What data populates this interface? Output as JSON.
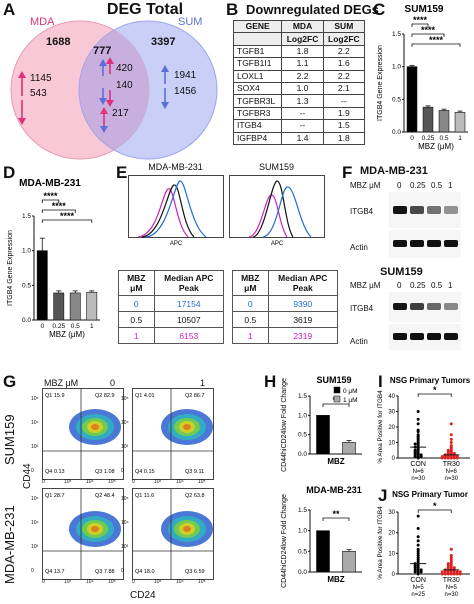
{
  "panels": {
    "a": "A",
    "b": "B",
    "c": "C",
    "d": "D",
    "e": "E",
    "f": "F",
    "g": "G",
    "h": "H",
    "i": "I",
    "j": "J"
  },
  "venn": {
    "title": "DEG Total",
    "left_label": "MDA",
    "right_label": "SUM",
    "left_total": "1688",
    "overlap_total": "777",
    "right_total": "3397",
    "left_up": "1145",
    "left_down": "543",
    "mid_up": "420",
    "mid_down": "140",
    "mid_mixed": "217",
    "right_up": "1941",
    "right_down": "1456",
    "colors": {
      "left": "#f0a8c0",
      "right": "#a8b4f0",
      "up": "#e0307a",
      "down": "#5b6fd8"
    }
  },
  "table_b": {
    "title": "Downregulated DEGs",
    "headers": [
      "GENE",
      "MDA",
      "SUM"
    ],
    "subheaders": [
      "",
      "Log2FC",
      "Log2FC"
    ],
    "rows": [
      [
        "TGFB1",
        "1.8",
        "2.2"
      ],
      [
        "TGFB1I1",
        "1.1",
        "1.6"
      ],
      [
        "LOXL1",
        "2.2",
        "2.2"
      ],
      [
        "SOX4",
        "1.0",
        "2.1"
      ],
      [
        "TGFBR3L",
        "1.3",
        "--"
      ],
      [
        "TGFBR3",
        "--",
        "1.9"
      ],
      [
        "ITGB4",
        "--",
        "1.5"
      ],
      [
        "IGFBP4",
        "1.4",
        "1.8"
      ]
    ]
  },
  "chart_data": [
    {
      "panel": "C",
      "type": "bar",
      "title": "SUM159",
      "categories": [
        "0",
        "0.25",
        "0.5",
        "1"
      ],
      "values": [
        1.0,
        0.38,
        0.33,
        0.3
      ],
      "errors": [
        0.02,
        0.02,
        0.02,
        0.02
      ],
      "xlabel": "MBZ (μM)",
      "ylabel": "ITGB4 Gene Expression",
      "ylim": [
        0,
        1.5
      ],
      "yticks": [
        "0.0",
        "0.5",
        "1.0",
        "1.5"
      ],
      "significance": [
        "****",
        "****",
        "****"
      ],
      "bar_colors": [
        "#000000",
        "#555555",
        "#888888",
        "#bbbbbb"
      ]
    },
    {
      "panel": "D",
      "type": "bar",
      "title": "MDA-MB-231",
      "categories": [
        "0",
        "0.25",
        "0.5",
        "1"
      ],
      "values": [
        1.0,
        0.39,
        0.39,
        0.4
      ],
      "errors": [
        0.18,
        0.03,
        0.03,
        0.02
      ],
      "xlabel": "MBZ (μM)",
      "ylabel": "ITGB4 Gene Expression",
      "ylim": [
        0,
        1.5
      ],
      "yticks": [
        "0.0",
        "0.5",
        "1.0",
        "1.5"
      ],
      "significance": [
        "****",
        "****",
        "****"
      ],
      "bar_colors": [
        "#000000",
        "#555555",
        "#888888",
        "#bbbbbb"
      ]
    },
    {
      "panel": "H-top",
      "type": "bar",
      "title": "SUM159",
      "categories": [
        "0 μM",
        "1 μM"
      ],
      "values": [
        1.0,
        0.3
      ],
      "errors": [
        0.0,
        0.05
      ],
      "xlabel": "MBZ",
      "ylabel": "CD44hiCD24low Fold Change",
      "ylim": [
        0,
        1.5
      ],
      "yticks": [
        "0.0",
        "0.5",
        "1.0",
        "1.5"
      ],
      "significance": [
        "**"
      ],
      "legend": [
        "0 μM",
        "1 μM"
      ],
      "bar_colors": [
        "#000000",
        "#aaaaaa"
      ]
    },
    {
      "panel": "H-bottom",
      "type": "bar",
      "title": "MDA-MB-231",
      "categories": [
        "0 μM",
        "1 μM"
      ],
      "values": [
        1.0,
        0.5
      ],
      "errors": [
        0.0,
        0.04
      ],
      "xlabel": "MBZ",
      "ylabel": "CD44hiCD24low Fold Change",
      "ylim": [
        0,
        1.5
      ],
      "yticks": [
        "0.0",
        "0.5",
        "1.0",
        "1.5"
      ],
      "significance": [
        "**"
      ],
      "bar_colors": [
        "#000000",
        "#aaaaaa"
      ]
    },
    {
      "panel": "I",
      "type": "scatter",
      "title": "NSG Primary Tumors",
      "categories": [
        "CON",
        "TR30"
      ],
      "sublabels": [
        "N=6\nn=30",
        "N=6\nn=30"
      ],
      "ylabel": "% Area Positive for ITGB4",
      "ylim": [
        0,
        40
      ],
      "yticks": [
        "0",
        "10",
        "20",
        "30",
        "40"
      ],
      "significance": [
        "*"
      ],
      "group_colors": [
        "#000000",
        "#e02020"
      ],
      "points": [
        [
          30,
          25,
          22,
          18,
          17,
          15,
          14,
          13,
          12,
          11,
          10,
          9,
          9,
          8,
          7,
          7,
          6,
          5,
          5,
          4,
          4,
          3,
          3,
          2,
          2,
          2,
          1,
          1,
          1,
          0
        ],
        [
          22,
          15,
          12,
          10,
          8,
          7,
          6,
          5,
          5,
          4,
          4,
          3,
          3,
          3,
          2,
          2,
          2,
          2,
          1,
          1,
          1,
          1,
          1,
          1,
          0,
          0,
          0,
          0,
          0,
          0
        ]
      ]
    },
    {
      "panel": "J",
      "type": "scatter",
      "title": "NSG Primary Tumor",
      "categories": [
        "CON",
        "TR30"
      ],
      "sublabels": [
        "N=5\nn=25",
        "N=5\nn=30"
      ],
      "ylabel": "% Area Positive for ITGB4",
      "ylim": [
        0,
        30
      ],
      "yticks": [
        "0",
        "10",
        "20",
        "30"
      ],
      "significance": [
        "*"
      ],
      "group_colors": [
        "#000000",
        "#e02020"
      ],
      "points": [
        [
          28,
          22,
          18,
          16,
          14,
          12,
          11,
          10,
          9,
          8,
          7,
          6,
          5,
          5,
          4,
          4,
          3,
          3,
          2,
          2,
          2,
          1,
          1,
          1,
          0
        ],
        [
          12,
          9,
          8,
          7,
          6,
          5,
          5,
          4,
          4,
          3,
          3,
          3,
          2,
          2,
          2,
          2,
          1,
          1,
          1,
          1,
          1,
          1,
          1,
          0,
          0,
          0,
          0,
          0,
          0,
          0
        ]
      ]
    }
  ],
  "panel_e": {
    "left_title": "MDA-MB-231",
    "right_title": "SUM159",
    "xlabel": "APC",
    "ylabel": "Count",
    "x_ticks": [
      "10²",
      "10³",
      "10⁴",
      "10⁵"
    ],
    "table_headers": [
      "MBZ μM",
      "Median APC Peak"
    ],
    "left_rows": [
      [
        "0",
        "17154"
      ],
      [
        "0.5",
        "10507"
      ],
      [
        "1",
        "6153"
      ]
    ],
    "right_rows": [
      [
        "0",
        "9390"
      ],
      [
        "0.5",
        "3619"
      ],
      [
        "1",
        "2319"
      ]
    ],
    "row_colors": [
      "#1f6fd0",
      "#111111",
      "#d020c0"
    ]
  },
  "panel_f": {
    "top_title": "MDA-MB-231",
    "bottom_title": "SUM159",
    "dose_label": "MBZ μM",
    "doses": [
      "0",
      "0.25",
      "0.5",
      "1"
    ],
    "top_bands": [
      "ITGB4",
      "Actin"
    ],
    "bottom_bands": [
      "ITGB4",
      "Actin"
    ],
    "itgb4_top_intensity": [
      1.0,
      0.75,
      0.55,
      0.4
    ],
    "itgb4_bottom_intensity": [
      1.0,
      0.8,
      0.6,
      0.45
    ]
  },
  "panel_g": {
    "dose_label": "MBZ μM",
    "doses": [
      "0",
      "1"
    ],
    "rows": [
      "SUM159",
      "MDA-MB-231"
    ],
    "ylabel": "CD44",
    "xlabel": "CD24",
    "quadrants": [
      [
        {
          "q1": "Q1 15.9",
          "q2": "Q2 82.9",
          "q3": "Q3 1.08",
          "q4": "Q4 0.13"
        },
        {
          "q1": "Q1 4.01",
          "q2": "Q2 86.7",
          "q3": "Q3 9.11",
          "q4": "Q4 0.15"
        }
      ],
      [
        {
          "q1": "Q1 28.7",
          "q2": "Q2 48.4",
          "q3": "Q3 7.88",
          "q4": "Q4 13.7"
        },
        {
          "q1": "Q1 11.6",
          "q2": "Q2 63.8",
          "q3": "Q3 6.59",
          "q4": "Q4 18.0"
        }
      ]
    ],
    "axis_ticks": [
      "0",
      "10³",
      "10⁴",
      "10⁵"
    ]
  }
}
